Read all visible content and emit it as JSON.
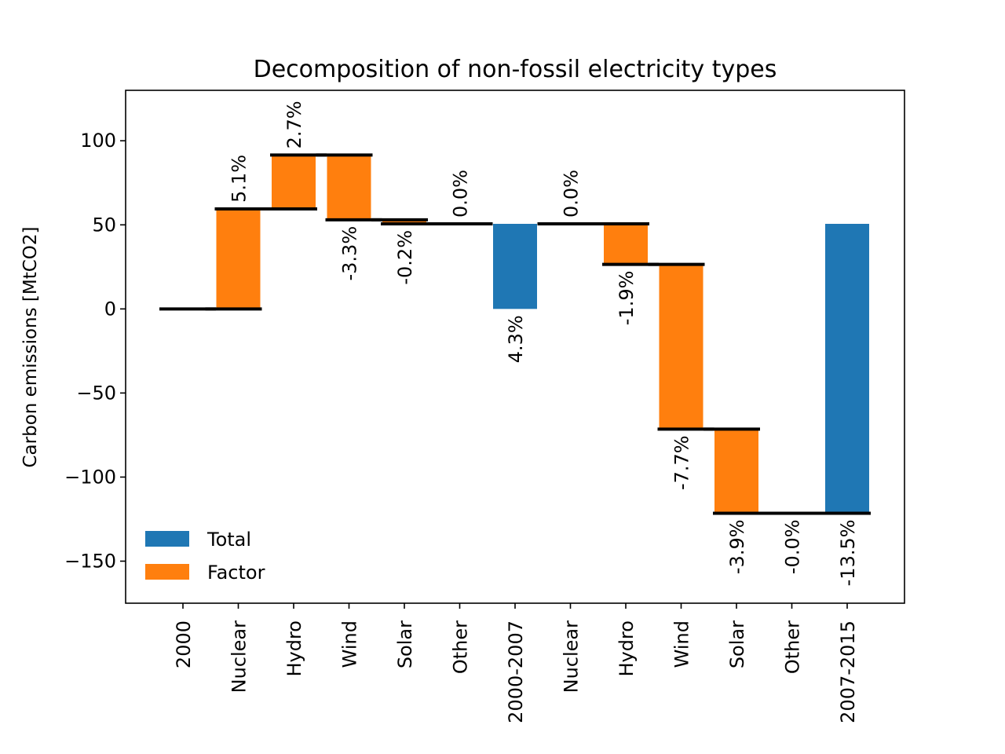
{
  "chart_data": {
    "type": "bar",
    "title": "Decomposition of non-fossil electricity types",
    "xlabel": "",
    "ylabel": "Carbon emissions [MtCO2]",
    "ylim": [
      -175,
      130
    ],
    "yticks": [
      100,
      50,
      0,
      -50,
      -100,
      -150
    ],
    "ytick_labels": [
      "100",
      "50",
      "0",
      "−50",
      "−100",
      "−150"
    ],
    "categories": [
      "2000",
      "Nuclear",
      "Hydro",
      "Wind",
      "Solar",
      "Other",
      "2000-2007",
      "Nuclear",
      "Hydro",
      "Wind",
      "Solar",
      "Other",
      "2007-2015"
    ],
    "bars": [
      {
        "category": "2000",
        "kind": "start",
        "base": 0,
        "top": 0,
        "label": ""
      },
      {
        "category": "Nuclear",
        "kind": "Factor",
        "base": 0,
        "top": 59.5,
        "label": "5.1%"
      },
      {
        "category": "Hydro",
        "kind": "Factor",
        "base": 59.5,
        "top": 91.5,
        "label": "2.7%"
      },
      {
        "category": "Wind",
        "kind": "Factor",
        "base": 91.5,
        "top": 53,
        "label": "-3.3%"
      },
      {
        "category": "Solar",
        "kind": "Factor",
        "base": 53,
        "top": 50.6,
        "label": "-0.2%"
      },
      {
        "category": "Other",
        "kind": "Factor",
        "base": 50.6,
        "top": 50.6,
        "label": "0.0%"
      },
      {
        "category": "2000-2007",
        "kind": "Total",
        "base": 0,
        "top": 50.6,
        "label": "4.3%"
      },
      {
        "category": "Nuclear",
        "kind": "Factor",
        "base": 50.6,
        "top": 50.6,
        "label": "0.0%"
      },
      {
        "category": "Hydro",
        "kind": "Factor",
        "base": 50.6,
        "top": 26.5,
        "label": "-1.9%"
      },
      {
        "category": "Wind",
        "kind": "Factor",
        "base": 26.5,
        "top": -71.5,
        "label": "-7.7%"
      },
      {
        "category": "Solar",
        "kind": "Factor",
        "base": -71.5,
        "top": -121.5,
        "label": "-3.9%"
      },
      {
        "category": "Other",
        "kind": "Factor",
        "base": -121.5,
        "top": -121.5,
        "label": "-0.0%"
      },
      {
        "category": "2007-2015",
        "kind": "Total",
        "base": -121.5,
        "top": 50.6,
        "label": "-13.5%"
      }
    ],
    "legend": [
      {
        "name": "Total",
        "color": "#1f77b4"
      },
      {
        "name": "Factor",
        "color": "#ff7f0e"
      }
    ],
    "legend_position": "lower-left",
    "grid": false
  }
}
